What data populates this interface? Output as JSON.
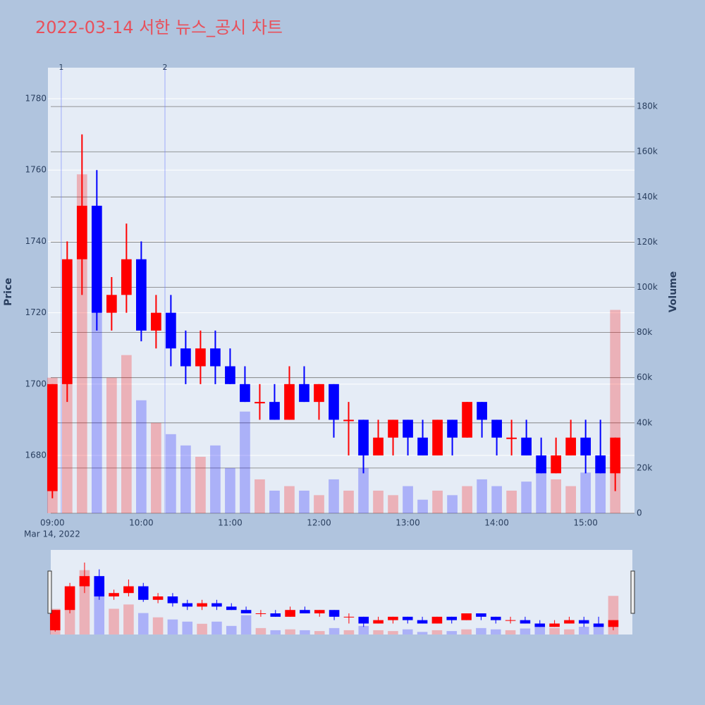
{
  "chart_data": {
    "type": "candlestick",
    "title": "2022-03-14 서한 뉴스_공시 차트",
    "y_title": "Price",
    "y2_title": "Volume",
    "x_date_label": "Mar 14, 2022",
    "x": [
      "2022-03-14 09:00",
      "2022-03-14 09:10",
      "2022-03-14 09:20",
      "2022-03-14 09:30",
      "2022-03-14 09:40",
      "2022-03-14 09:50",
      "2022-03-14 10:00",
      "2022-03-14 10:10",
      "2022-03-14 10:20",
      "2022-03-14 10:30",
      "2022-03-14 10:40",
      "2022-03-14 10:50",
      "2022-03-14 11:00",
      "2022-03-14 11:10",
      "2022-03-14 11:20",
      "2022-03-14 11:30",
      "2022-03-14 11:40",
      "2022-03-14 11:50",
      "2022-03-14 12:00",
      "2022-03-14 12:10",
      "2022-03-14 12:20",
      "2022-03-14 12:30",
      "2022-03-14 12:40",
      "2022-03-14 12:50",
      "2022-03-14 13:00",
      "2022-03-14 13:10",
      "2022-03-14 13:20",
      "2022-03-14 13:30",
      "2022-03-14 13:40",
      "2022-03-14 13:50",
      "2022-03-14 14:00",
      "2022-03-14 14:10",
      "2022-03-14 14:20",
      "2022-03-14 14:30",
      "2022-03-14 14:40",
      "2022-03-14 14:50",
      "2022-03-14 15:00",
      "2022-03-14 15:10",
      "2022-03-14 15:20"
    ],
    "open": [
      1670,
      1700,
      1735,
      1750,
      1720,
      1725,
      1735,
      1715,
      1720,
      1710,
      1705,
      1710,
      1705,
      1700,
      1695,
      1695,
      1690,
      1700,
      1695,
      1700,
      1690,
      1690,
      1680,
      1685,
      1690,
      1685,
      1680,
      1690,
      1685,
      1695,
      1690,
      1685,
      1685,
      1680,
      1675,
      1680,
      1685,
      1680,
      1675
    ],
    "high": [
      1700,
      1740,
      1770,
      1760,
      1730,
      1745,
      1740,
      1725,
      1725,
      1715,
      1715,
      1715,
      1710,
      1705,
      1700,
      1700,
      1705,
      1705,
      1700,
      1700,
      1695,
      1690,
      1690,
      1690,
      1690,
      1690,
      1690,
      1690,
      1695,
      1695,
      1690,
      1690,
      1690,
      1685,
      1685,
      1690,
      1690,
      1690,
      1685
    ],
    "low": [
      1668,
      1695,
      1725,
      1715,
      1715,
      1720,
      1712,
      1710,
      1705,
      1700,
      1700,
      1700,
      1700,
      1695,
      1690,
      1690,
      1690,
      1695,
      1690,
      1685,
      1680,
      1675,
      1680,
      1680,
      1680,
      1680,
      1680,
      1680,
      1685,
      1685,
      1680,
      1680,
      1680,
      1675,
      1675,
      1680,
      1675,
      1675,
      1670
    ],
    "close": [
      1700,
      1735,
      1750,
      1720,
      1725,
      1735,
      1715,
      1720,
      1710,
      1705,
      1710,
      1705,
      1700,
      1695,
      1695,
      1690,
      1700,
      1695,
      1700,
      1690,
      1690,
      1680,
      1685,
      1690,
      1685,
      1680,
      1690,
      1685,
      1695,
      1690,
      1685,
      1685,
      1680,
      1675,
      1680,
      1685,
      1680,
      1675,
      1685
    ],
    "volume": [
      60000,
      110000,
      150000,
      120000,
      60000,
      70000,
      50000,
      40000,
      35000,
      30000,
      25000,
      30000,
      20000,
      45000,
      15000,
      10000,
      12000,
      10000,
      8000,
      15000,
      10000,
      20000,
      10000,
      8000,
      12000,
      6000,
      10000,
      8000,
      12000,
      15000,
      12000,
      10000,
      14000,
      20000,
      15000,
      12000,
      18000,
      25000,
      90000
    ],
    "increasing_color": "#ff0000",
    "decreasing_color": "#0000ff",
    "xlim": [
      "2022-03-14 08:57",
      "2022-03-14 15:33"
    ],
    "xticks": [
      {
        "value": "2022-03-14 09:00",
        "label": "09:00"
      },
      {
        "value": "2022-03-14 10:00",
        "label": "10:00"
      },
      {
        "value": "2022-03-14 11:00",
        "label": "11:00"
      },
      {
        "value": "2022-03-14 12:00",
        "label": "12:00"
      },
      {
        "value": "2022-03-14 13:00",
        "label": "13:00"
      },
      {
        "value": "2022-03-14 14:00",
        "label": "14:00"
      },
      {
        "value": "2022-03-14 15:00",
        "label": "15:00"
      }
    ],
    "ylim": [
      1663.8,
      1788.7
    ],
    "yticks": [
      1680,
      1700,
      1720,
      1740,
      1760,
      1780
    ],
    "y2lim": [
      0,
      197200
    ],
    "y2ticks": [
      0,
      {
        "value": 20000,
        "label": "20k"
      },
      {
        "value": 40000,
        "label": "40k"
      },
      {
        "value": 60000,
        "label": "60k"
      },
      {
        "value": 80000,
        "label": "80k"
      },
      {
        "value": 100000,
        "label": "100k"
      },
      {
        "value": 120000,
        "label": "120k"
      },
      {
        "value": 140000,
        "label": "140k"
      },
      {
        "value": 160000,
        "label": "160k"
      },
      {
        "value": 180000,
        "label": "180k"
      }
    ],
    "annotations": [
      {
        "x": "2022-03-14 09:06",
        "text": "1"
      },
      {
        "x": "2022-03-14 10:16",
        "text": "2"
      }
    ],
    "grid": true
  }
}
